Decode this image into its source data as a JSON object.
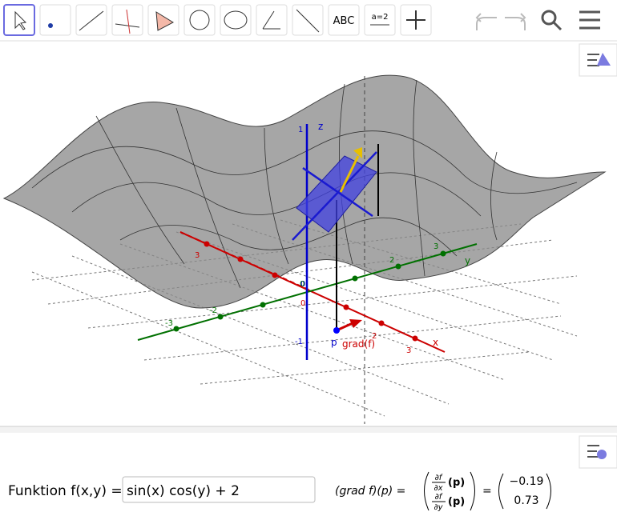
{
  "toolbar": {
    "text_tool": "ABC",
    "slider_tool": "a=2"
  },
  "graphics": {
    "z_axis": {
      "name": "z",
      "ticks": [
        "1",
        "0",
        "-1"
      ]
    },
    "x_axis": {
      "name": "x",
      "ticks": [
        "3",
        "0",
        "2",
        "3"
      ]
    },
    "y_axis": {
      "name": "y",
      "ticks": [
        "-3",
        "-2",
        "0",
        "2",
        "3"
      ]
    },
    "point": "p",
    "vector": "grad(f)"
  },
  "input_bar": {
    "label": "Funktion f(x,y) =",
    "value": "sin(x) cos(y) + 2"
  },
  "formula": {
    "lhs": "(grad f)(p) =",
    "numerator": "∂f",
    "dx": "∂x",
    "dy": "∂y",
    "arg": "(p)",
    "eq": "=",
    "results": [
      "−0.19",
      "0.73"
    ]
  }
}
